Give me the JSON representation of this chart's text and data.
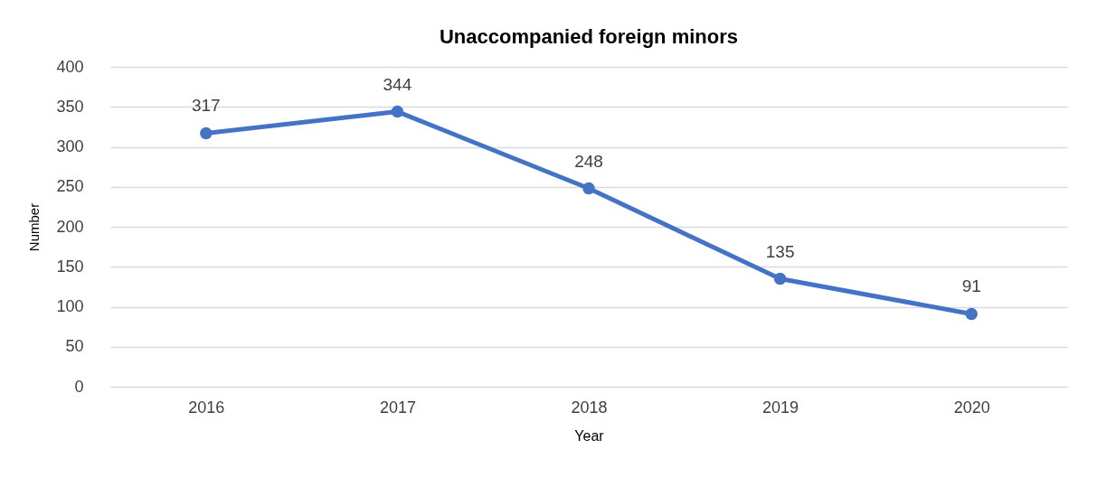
{
  "chart_data": {
    "type": "line",
    "title": "Unaccompanied foreign minors",
    "xlabel": "Year",
    "ylabel": "Number",
    "categories": [
      "2016",
      "2017",
      "2018",
      "2019",
      "2020"
    ],
    "series": [
      {
        "color": "#4472c4",
        "values": [
          317,
          344,
          248,
          135,
          91
        ]
      }
    ],
    "ylim": [
      0,
      400
    ],
    "yticks": [
      0,
      50,
      100,
      150,
      200,
      250,
      300,
      350,
      400
    ],
    "grid": "y",
    "marker": "circle",
    "line_style": "solid",
    "data_labels": true
  }
}
